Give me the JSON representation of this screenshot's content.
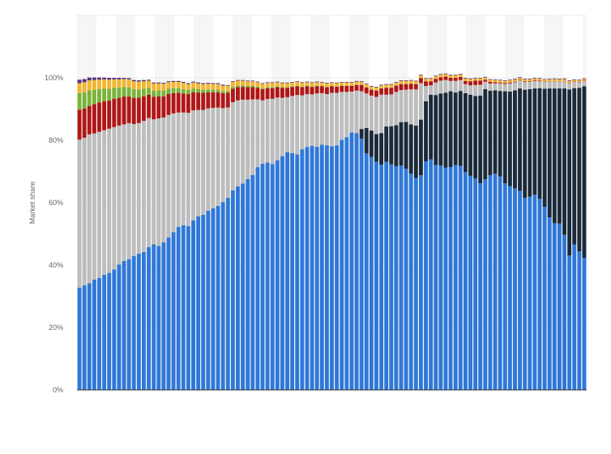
{
  "chart_data": {
    "type": "bar",
    "stacked": true,
    "ylabel": "Market share",
    "xlabel": "",
    "title": "",
    "ylim": [
      0,
      120
    ],
    "yticks": [
      0,
      20,
      40,
      60,
      80,
      100
    ],
    "ytick_labels": [
      "0%",
      "20%",
      "40%",
      "60%",
      "80%",
      "100%"
    ],
    "grid": true,
    "legend": "none",
    "band_colors": [
      "#f6f6f6",
      "#ffffff"
    ],
    "colors": [
      "#2f78d8",
      "#1b2a3a",
      "#bdbdbd",
      "#b01717",
      "#7ab33a",
      "#f2b631",
      "#54327c"
    ],
    "series": [
      {
        "values": [
          32.8,
          33.5,
          34.2,
          35.4,
          35.9,
          36.9,
          37.5,
          38.6,
          40.2,
          41.3,
          41.9,
          42.9,
          43.7,
          44.2,
          45.8,
          46.7,
          46.1,
          47.3,
          48.9,
          50.6,
          52.2,
          52.8,
          52.5,
          54.3,
          55.6,
          56.1,
          57.4,
          58.2,
          59.0,
          60.2,
          61.6,
          63.9,
          65.2,
          66.1,
          67.6,
          68.9,
          71.4,
          72.5,
          72.9,
          72.4,
          73.6,
          74.9,
          76.2,
          75.9,
          75.5,
          77.1,
          77.8,
          78.2,
          77.9,
          78.6,
          78.4,
          78.1,
          78.4,
          80.1,
          81.0,
          82.5,
          82.3,
          80.5,
          75.8,
          74.7,
          73.1,
          72.2,
          73.1,
          72.3,
          71.7,
          71.9,
          70.9,
          69.3,
          67.9,
          68.8,
          73.2,
          73.9,
          72.1,
          71.9,
          71.2,
          71.4,
          72.1,
          71.8,
          69.8,
          68.6,
          67.8,
          66.2,
          67.5,
          68.8,
          69.3,
          68.4,
          66.2,
          65.3,
          64.6,
          63.8,
          61.5,
          61.9,
          62.6,
          61.2,
          58.7,
          55.3,
          53.4,
          53.3,
          49.7,
          43.1,
          46.6,
          44.4,
          42.3
        ]
      },
      {
        "values": [
          0,
          0,
          0,
          0,
          0,
          0,
          0,
          0,
          0,
          0,
          0,
          0,
          0,
          0,
          0,
          0,
          0,
          0,
          0,
          0,
          0,
          0,
          0,
          0,
          0,
          0,
          0,
          0,
          0,
          0,
          0,
          0,
          0,
          0,
          0,
          0,
          0,
          0,
          0,
          0,
          0,
          0,
          0,
          0,
          0,
          0,
          0,
          0,
          0,
          0,
          0,
          0,
          0,
          0,
          0,
          0,
          0,
          3.1,
          8.1,
          8.4,
          8.9,
          10.1,
          11.3,
          12.2,
          13.1,
          13.9,
          15.0,
          15.8,
          16.8,
          17.8,
          19.3,
          20.7,
          22.4,
          23.1,
          24.0,
          24.3,
          23.2,
          24.0,
          25.3,
          26.0,
          26.4,
          28.1,
          28.9,
          27.1,
          26.7,
          27.4,
          29.5,
          30.3,
          31.4,
          32.8,
          34.7,
          34.5,
          34.0,
          35.5,
          37.8,
          41.3,
          43.2,
          43.3,
          46.9,
          53.2,
          50.1,
          52.4,
          55.0
        ]
      },
      {
        "values": [
          47.4,
          47.3,
          47.7,
          46.8,
          46.8,
          46.3,
          46.2,
          45.6,
          44.5,
          43.8,
          43.6,
          42.3,
          41.8,
          42.0,
          41.3,
          40.0,
          40.9,
          40.0,
          39.2,
          38.0,
          36.7,
          36.1,
          36.3,
          35.3,
          34.1,
          33.6,
          32.8,
          32.2,
          31.5,
          30.1,
          28.9,
          28.3,
          27.6,
          26.9,
          25.4,
          24.2,
          21.7,
          20.3,
          20.3,
          20.9,
          20.1,
          18.7,
          17.6,
          18.3,
          19.0,
          17.3,
          17.0,
          16.5,
          17.1,
          16.5,
          16.4,
          17.1,
          16.8,
          15.4,
          14.5,
          13.1,
          13.6,
          12.1,
          11.1,
          11.2,
          11.9,
          12.3,
          10.2,
          10.2,
          10.7,
          10.3,
          10.3,
          11.2,
          11.6,
          11.7,
          4.9,
          3.0,
          4.0,
          4.1,
          4.1,
          3.3,
          3.7,
          3.5,
          2.9,
          3.0,
          3.5,
          3.5,
          2.4,
          2.3,
          2.2,
          2.4,
          2.3,
          2.6,
          2.6,
          2.6,
          2.5,
          2.3,
          2.4,
          2.2,
          2.2,
          2.2,
          2.3,
          2.2,
          2.3,
          2.0,
          2.0,
          1.8,
          1.7
        ]
      },
      {
        "values": [
          9.6,
          9.4,
          9.1,
          9.4,
          9.4,
          9.3,
          9.0,
          9.1,
          8.9,
          8.9,
          8.5,
          8.4,
          8.2,
          7.9,
          7.5,
          7.2,
          7.1,
          6.8,
          6.7,
          6.5,
          6.3,
          6.1,
          6.0,
          5.8,
          5.6,
          5.5,
          5.2,
          5.0,
          4.9,
          4.8,
          4.7,
          4.3,
          4.2,
          4.1,
          4.0,
          3.9,
          3.7,
          3.6,
          3.5,
          3.4,
          3.3,
          3.2,
          3.0,
          2.9,
          2.8,
          2.6,
          2.5,
          2.4,
          2.3,
          2.2,
          2.2,
          2.1,
          2.0,
          1.9,
          1.9,
          1.8,
          1.8,
          2.0,
          1.9,
          1.9,
          2.0,
          2.0,
          2.2,
          2.1,
          2.0,
          1.9,
          1.8,
          1.8,
          1.7,
          1.6,
          1.5,
          1.3,
          1.2,
          1.1,
          1.1,
          1.0,
          1.0,
          1.0,
          1.0,
          1.3,
          1.4,
          1.3,
          0.6,
          0.5,
          0.4,
          0.3,
          0.3,
          0.3,
          0.2,
          0.2,
          0.2,
          0.2,
          0.2,
          0.2,
          0.1,
          0.1,
          0.1,
          0.1,
          0.1,
          0.1,
          0.1,
          0.1,
          0.1
        ]
      },
      {
        "values": [
          5.3,
          5.1,
          5.0,
          4.6,
          4.3,
          4.1,
          3.8,
          3.5,
          3.3,
          3.1,
          2.9,
          2.8,
          2.6,
          2.4,
          2.2,
          2.0,
          1.9,
          1.8,
          1.7,
          1.6,
          1.5,
          1.4,
          1.3,
          1.2,
          1.1,
          1.0,
          0.9,
          0.9,
          0.8,
          0.7,
          0.6,
          0.6,
          0.5,
          0.5,
          0.4,
          0.4,
          0.4,
          0.3,
          0.3,
          0.3,
          0.3,
          0.2,
          0.2,
          0.2,
          0.2,
          0.2,
          0.2,
          0.2,
          0.2,
          0.1,
          0.1,
          0.1,
          0.1,
          0.1,
          0.1,
          0.1,
          0.1,
          0.1,
          0.1,
          0.1,
          0.1,
          0.1,
          0.1,
          0.1,
          0.1,
          0.1,
          0.1,
          0.1,
          0.1,
          0.1,
          0,
          0,
          0,
          0,
          0,
          0,
          0,
          0,
          0,
          0,
          0,
          0,
          0,
          0,
          0,
          0,
          0,
          0,
          0,
          0,
          0,
          0,
          0,
          0,
          0,
          0,
          0,
          0,
          0,
          0,
          0,
          0,
          0
        ]
      },
      {
        "values": [
          3.2,
          3.3,
          3.2,
          3.1,
          3.0,
          2.9,
          2.9,
          2.7,
          2.6,
          2.5,
          2.6,
          2.5,
          2.5,
          2.4,
          2.3,
          2.3,
          2.2,
          2.2,
          2.1,
          2.0,
          2.0,
          2.0,
          1.9,
          1.9,
          1.8,
          1.8,
          1.8,
          1.7,
          1.8,
          1.7,
          1.7,
          1.6,
          1.6,
          1.5,
          1.5,
          1.5,
          1.4,
          1.4,
          1.4,
          1.4,
          1.3,
          1.3,
          1.3,
          1.2,
          1.2,
          1.2,
          1.1,
          1.1,
          1.1,
          1.1,
          1.1,
          1.0,
          1.0,
          1.0,
          1.0,
          1.0,
          1.0,
          0.9,
          0.9,
          0.9,
          0.9,
          0.9,
          0.9,
          0.9,
          0.9,
          0.9,
          0.9,
          0.9,
          0.8,
          0.8,
          0.8,
          0.8,
          0.8,
          0.8,
          0.8,
          0.8,
          0.8,
          0.8,
          0.8,
          0.7,
          0.7,
          0.7,
          0.7,
          0.7,
          0.7,
          0.7,
          0.7,
          0.7,
          0.7,
          0.6,
          0.6,
          0.6,
          0.6,
          0.6,
          0.6,
          0.6,
          0.6,
          0.6,
          0.6,
          0.6,
          0.5,
          0.5,
          0.5
        ]
      },
      {
        "values": [
          1.1,
          1.0,
          0.9,
          0.8,
          0.7,
          0.6,
          0.6,
          0.5,
          0.5,
          0.4,
          0.4,
          0.4,
          0.4,
          0.4,
          0.3,
          0.3,
          0.3,
          0.3,
          0.3,
          0.3,
          0.3,
          0.3,
          0.3,
          0.3,
          0.3,
          0.3,
          0.3,
          0.3,
          0.3,
          0.3,
          0.2,
          0.2,
          0.2,
          0.2,
          0.2,
          0.2,
          0.2,
          0.2,
          0.2,
          0.2,
          0.2,
          0.2,
          0.2,
          0.2,
          0.2,
          0.2,
          0.2,
          0.2,
          0.2,
          0.2,
          0.2,
          0.2,
          0.2,
          0.2,
          0.2,
          0.2,
          0.2,
          0.2,
          0.2,
          0.2,
          0.2,
          0.2,
          0.2,
          0.2,
          0.2,
          0.2,
          0.2,
          0.2,
          0.2,
          0.2,
          0.2,
          0.2,
          0.2,
          0.2,
          0.2,
          0.2,
          0.2,
          0.2,
          0.2,
          0.2,
          0.2,
          0.2,
          0.2,
          0.2,
          0.2,
          0.2,
          0.2,
          0.2,
          0.2,
          0.2,
          0.2,
          0.2,
          0.2,
          0.2,
          0.2,
          0.2,
          0.2,
          0.2,
          0.2,
          0.2,
          0.2,
          0.2,
          0.2
        ]
      }
    ]
  }
}
